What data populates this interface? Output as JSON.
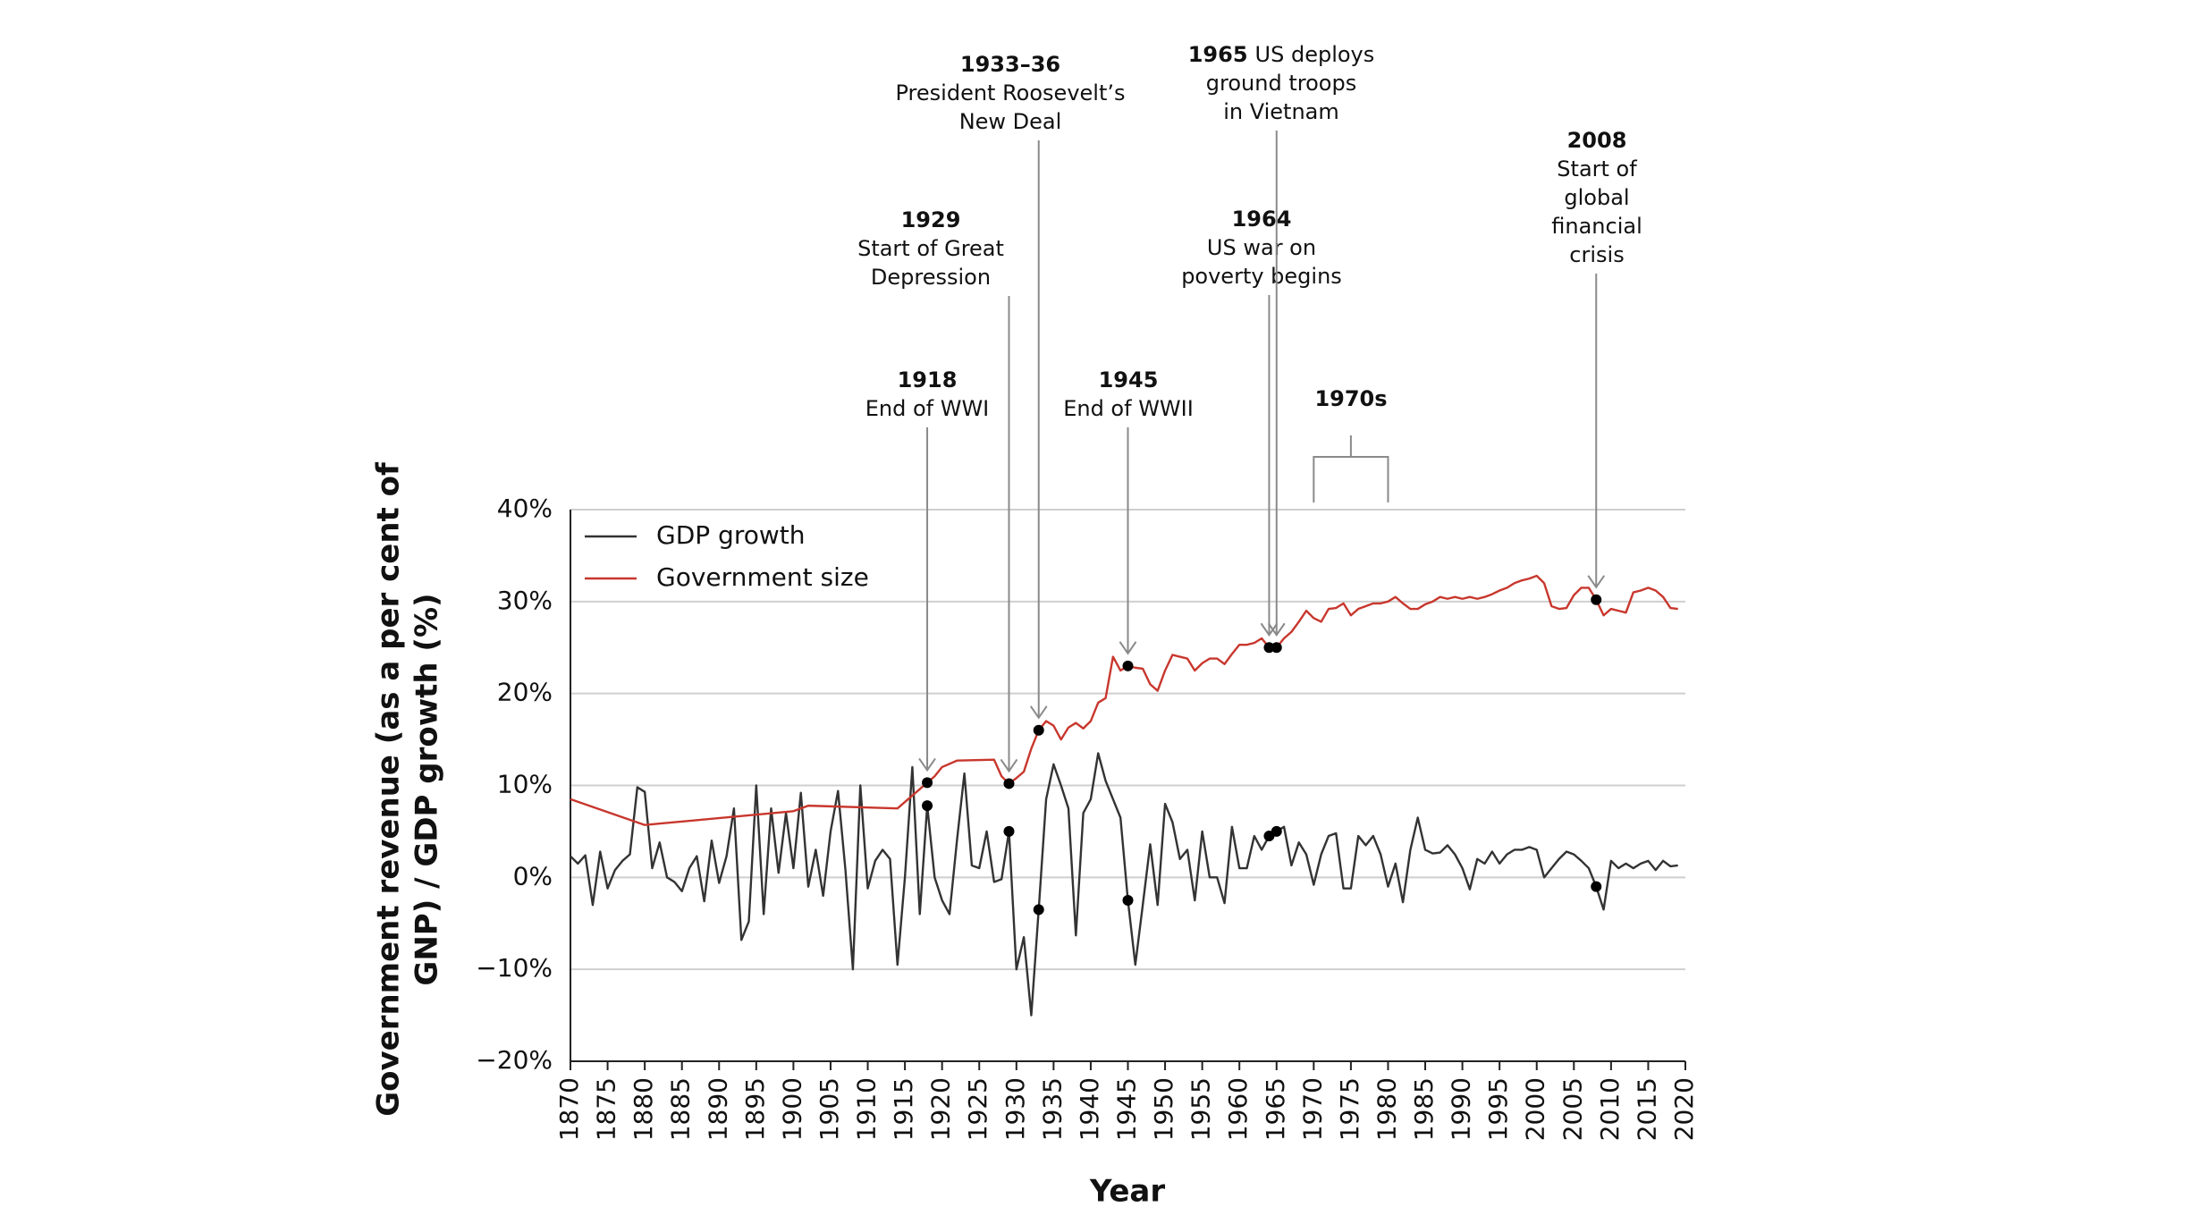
{
  "chart_data": {
    "type": "line",
    "xlabel": "Year",
    "ylabel": [
      "Government revenue (as a per cent of",
      "GNP) / GDP growth (%)"
    ],
    "xlim": [
      1870,
      2020
    ],
    "ylim": [
      -20,
      40
    ],
    "xticks": [
      1870,
      1875,
      1880,
      1885,
      1890,
      1895,
      1900,
      1905,
      1910,
      1915,
      1920,
      1925,
      1930,
      1935,
      1940,
      1945,
      1950,
      1955,
      1960,
      1965,
      1970,
      1975,
      1980,
      1985,
      1990,
      1995,
      2000,
      2005,
      2010,
      2015,
      2020
    ],
    "yticks": [
      {
        "value": -20,
        "label": "−20%"
      },
      {
        "value": -10,
        "label": "−10%"
      },
      {
        "value": 0,
        "label": "0%"
      },
      {
        "value": 10,
        "label": "10%"
      },
      {
        "value": 20,
        "label": "20%"
      },
      {
        "value": 30,
        "label": "30%"
      },
      {
        "value": 40,
        "label": "40%"
      }
    ],
    "grid": true,
    "legend": "upper left",
    "series": [
      {
        "name": "GDP growth",
        "color": "#333333",
        "x": [
          1870,
          1871,
          1872,
          1873,
          1874,
          1875,
          1876,
          1877,
          1878,
          1879,
          1880,
          1881,
          1882,
          1883,
          1884,
          1885,
          1886,
          1887,
          1888,
          1889,
          1890,
          1891,
          1892,
          1893,
          1894,
          1895,
          1896,
          1897,
          1898,
          1899,
          1900,
          1901,
          1902,
          1903,
          1904,
          1905,
          1906,
          1907,
          1908,
          1909,
          1910,
          1911,
          1912,
          1913,
          1914,
          1915,
          1916,
          1917,
          1918,
          1919,
          1920,
          1921,
          1922,
          1923,
          1924,
          1925,
          1926,
          1927,
          1928,
          1929,
          1930,
          1931,
          1932,
          1933,
          1934,
          1935,
          1936,
          1937,
          1938,
          1939,
          1940,
          1941,
          1942,
          1943,
          1944,
          1945,
          1946,
          1947,
          1948,
          1949,
          1950,
          1951,
          1952,
          1953,
          1954,
          1955,
          1956,
          1957,
          1958,
          1959,
          1960,
          1961,
          1962,
          1963,
          1964,
          1965,
          1966,
          1967,
          1968,
          1969,
          1970,
          1971,
          1972,
          1973,
          1974,
          1975,
          1976,
          1977,
          1978,
          1979,
          1980,
          1981,
          1982,
          1983,
          1984,
          1985,
          1986,
          1987,
          1988,
          1989,
          1990,
          1991,
          1992,
          1993,
          1994,
          1995,
          1996,
          1997,
          1998,
          1999,
          2000,
          2001,
          2002,
          2003,
          2004,
          2005,
          2006,
          2007,
          2008,
          2009,
          2010,
          2011,
          2012,
          2013,
          2014,
          2015,
          2016,
          2017,
          2018,
          2019
        ],
        "values": [
          2.3,
          1.5,
          2.4,
          -3,
          2.8,
          -1.2,
          0.8,
          1.8,
          2.5,
          9.8,
          9.3,
          1,
          3.8,
          0,
          -0.5,
          -1.5,
          1,
          2.3,
          -2.6,
          4,
          -0.6,
          2.3,
          7.5,
          -6.8,
          -4.8,
          10,
          -4,
          7.5,
          0.5,
          7,
          1,
          9.2,
          -1,
          3,
          -2,
          5,
          9.4,
          0.8,
          -10,
          10,
          -1.2,
          1.8,
          3,
          2,
          -9.5,
          0,
          12,
          -4,
          7.8,
          0,
          -2.5,
          -4,
          4,
          11.3,
          1.3,
          1,
          5,
          -0.5,
          -0.2,
          5,
          -10,
          -6.5,
          -15,
          -3.5,
          8.5,
          12.3,
          10,
          7.5,
          -6.3,
          7,
          8.5,
          13.5,
          10.5,
          8.5,
          6.5,
          -2.5,
          -9.5,
          -3,
          3.6,
          -3,
          8,
          6,
          2,
          3,
          -2.5,
          5,
          0,
          0,
          -2.8,
          5.5,
          1,
          1,
          4.5,
          3,
          4.5,
          5,
          5.5,
          1.3,
          3.8,
          2.5,
          -0.8,
          2.5,
          4.5,
          4.8,
          -1.2,
          -1.2,
          4.5,
          3.5,
          4.5,
          2.5,
          -1,
          1.5,
          -2.7,
          3,
          6.5,
          3,
          2.6,
          2.7,
          3.5,
          2.5,
          1,
          -1.3,
          2,
          1.5,
          2.8,
          1.5,
          2.5,
          3,
          3,
          3.3,
          3,
          0,
          1,
          2,
          2.8,
          2.5,
          1.8,
          1,
          -1,
          -3.5,
          1.8,
          1,
          1.5,
          1,
          1.5,
          1.8,
          0.8,
          1.8,
          1.2,
          1.3
        ]
      },
      {
        "name": "Government size",
        "color": "#c8372d",
        "x": [
          1870,
          1880,
          1900,
          1902,
          1914,
          1918,
          1919,
          1920,
          1922,
          1927,
          1928,
          1929,
          1930,
          1931,
          1932,
          1933,
          1934,
          1935,
          1936,
          1937,
          1938,
          1939,
          1940,
          1941,
          1942,
          1943,
          1944,
          1945,
          1946,
          1947,
          1948,
          1949,
          1950,
          1951,
          1952,
          1953,
          1954,
          1955,
          1956,
          1957,
          1958,
          1959,
          1960,
          1961,
          1962,
          1963,
          1964,
          1965,
          1966,
          1967,
          1968,
          1969,
          1970,
          1971,
          1972,
          1973,
          1974,
          1975,
          1976,
          1977,
          1978,
          1979,
          1980,
          1981,
          1982,
          1983,
          1984,
          1985,
          1986,
          1987,
          1988,
          1989,
          1990,
          1991,
          1992,
          1993,
          1994,
          1995,
          1996,
          1997,
          1998,
          1999,
          2000,
          2001,
          2002,
          2003,
          2004,
          2005,
          2006,
          2007,
          2008,
          2009,
          2010,
          2011,
          2012,
          2013,
          2014,
          2015,
          2016,
          2017,
          2018,
          2019
        ],
        "values": [
          8.5,
          5.7,
          7.2,
          7.8,
          7.5,
          10.3,
          11,
          12,
          12.7,
          12.8,
          11,
          10.2,
          10.8,
          11.5,
          14,
          16,
          17,
          16.5,
          15,
          16.3,
          16.8,
          16.2,
          17,
          19,
          19.5,
          24,
          22.5,
          23,
          22.8,
          22.7,
          21,
          20.3,
          22.5,
          24.2,
          24,
          23.8,
          22.5,
          23.3,
          23.8,
          23.8,
          23.2,
          24.3,
          25.3,
          25.3,
          25.5,
          26,
          25,
          25,
          26,
          26.7,
          27.8,
          29,
          28.2,
          27.8,
          29.2,
          29.3,
          29.8,
          28.5,
          29.2,
          29.5,
          29.8,
          29.8,
          30,
          30.5,
          29.8,
          29.2,
          29.2,
          29.7,
          30,
          30.5,
          30.3,
          30.5,
          30.3,
          30.5,
          30.3,
          30.5,
          30.8,
          31.2,
          31.5,
          32,
          32.3,
          32.5,
          32.8,
          32,
          29.5,
          29.2,
          29.3,
          30.7,
          31.5,
          31.5,
          30.2,
          28.5,
          29.2,
          29,
          28.8,
          31,
          31.2,
          31.5,
          31.2,
          30.5,
          29.3,
          29.2
        ]
      }
    ],
    "annotations": [
      {
        "x": 1918,
        "title": "1918",
        "lines": [
          "End of WWI"
        ]
      },
      {
        "x": 1929,
        "title": "1929",
        "lines": [
          "Start of Great",
          "Depression"
        ]
      },
      {
        "x": 1933,
        "title": "1933–36",
        "lines": [
          "President Roosevelt’s",
          "New Deal"
        ]
      },
      {
        "x": 1945,
        "title": "1945",
        "lines": [
          "End of WWII"
        ]
      },
      {
        "x": 1964,
        "title": "1964",
        "lines": [
          "US war on",
          "poverty begins"
        ]
      },
      {
        "x": 1965,
        "title": "1965",
        "lines": [
          "US deploys",
          "ground troops",
          "in Vietnam"
        ]
      },
      {
        "xrange": [
          1970,
          1980
        ],
        "title": "1970s",
        "lines": []
      },
      {
        "x": 2008,
        "title": "2008",
        "lines": [
          "Start of",
          "global",
          "financial",
          "crisis"
        ]
      }
    ]
  }
}
